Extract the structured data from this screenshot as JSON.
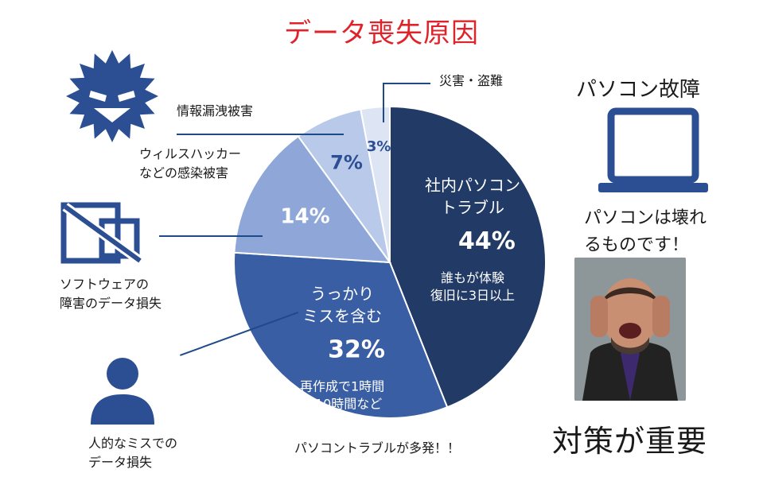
{
  "title": "データ喪失原因",
  "chart_data": {
    "type": "pie",
    "title": "データ喪失原因",
    "slices": [
      {
        "label": "社内パソコン\nトラブル",
        "value": 44,
        "value_text": "44%",
        "note": "誰もが体験\n復旧に3日以上",
        "color": "#223a66"
      },
      {
        "label": "うっかり\nミスを含む",
        "value": 32,
        "value_text": "32%",
        "note": "再作成で1時間\n～10時間など",
        "color": "#3a5ea3"
      },
      {
        "label": "",
        "value": 14,
        "value_text": "14%",
        "note": "",
        "color": "#8ea6d8"
      },
      {
        "label": "",
        "value": 7,
        "value_text": "7%",
        "note": "",
        "color": "#b9c9e9"
      },
      {
        "label": "",
        "value": 3,
        "value_text": "3%",
        "note": "",
        "color": "#dde5f4"
      }
    ]
  },
  "callouts": {
    "disaster": "災害・盗難",
    "leak": "情報漏洩被害",
    "virus": "ウィルスハッカー\nなどの感染被害",
    "software": "ソフトウェアの\n障害のデータ損失",
    "human": "人的なミスでの\nデータ損失"
  },
  "right": {
    "pc_title": "パソコン故障",
    "pc_note": "パソコンは壊れ\nるものです！",
    "taisaku": "対策が重要"
  },
  "bottom_note": "パソコントラブルが多発！！",
  "icons": [
    "virus-icon",
    "broken-window-icon",
    "person-icon",
    "laptop-icon",
    "stressed-man-photo"
  ],
  "colors": {
    "title": "#e0232a",
    "icon_blue": "#2c4f93",
    "leader": "#1f4a8a"
  }
}
